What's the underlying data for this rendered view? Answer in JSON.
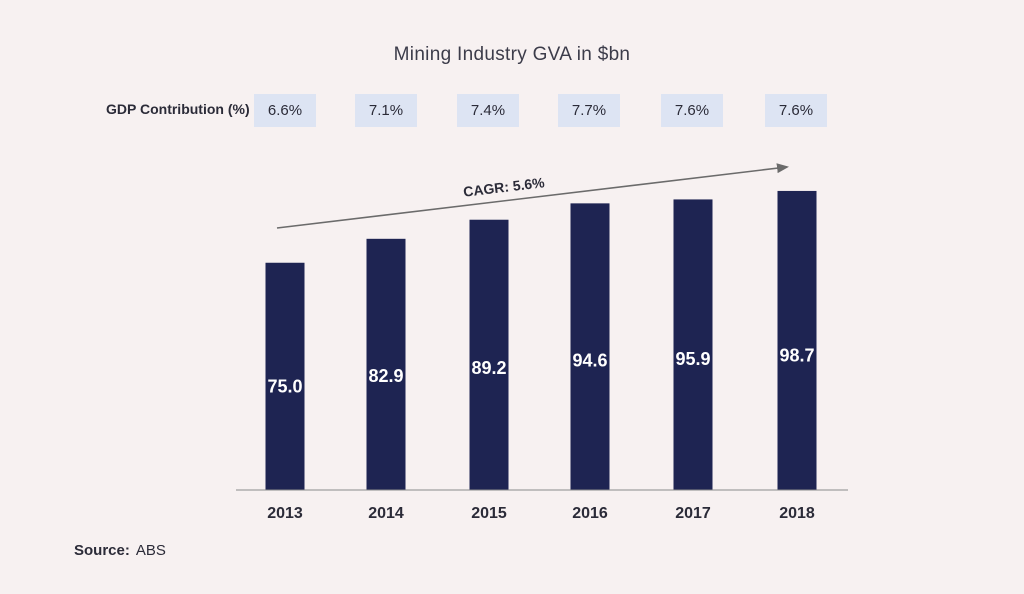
{
  "chart_data": {
    "type": "bar",
    "title": "Mining Industry GVA in $bn",
    "categories": [
      "2013",
      "2014",
      "2015",
      "2016",
      "2017",
      "2018"
    ],
    "values": [
      75.0,
      82.9,
      89.2,
      94.6,
      95.9,
      98.7
    ],
    "value_labels": [
      "75.0",
      "82.9",
      "89.2",
      "94.6",
      "95.9",
      "98.7"
    ],
    "ylim": [
      0,
      100
    ],
    "grid": false,
    "bar_color": "#1e2452",
    "gdp_contribution": {
      "label": "GDP Contribution (%)",
      "values": [
        "6.6%",
        "7.1%",
        "7.4%",
        "7.7%",
        "7.6%",
        "7.6%"
      ]
    },
    "annotation": "CAGR: 5.6%"
  },
  "source": {
    "label": "Source:",
    "value": "ABS"
  }
}
